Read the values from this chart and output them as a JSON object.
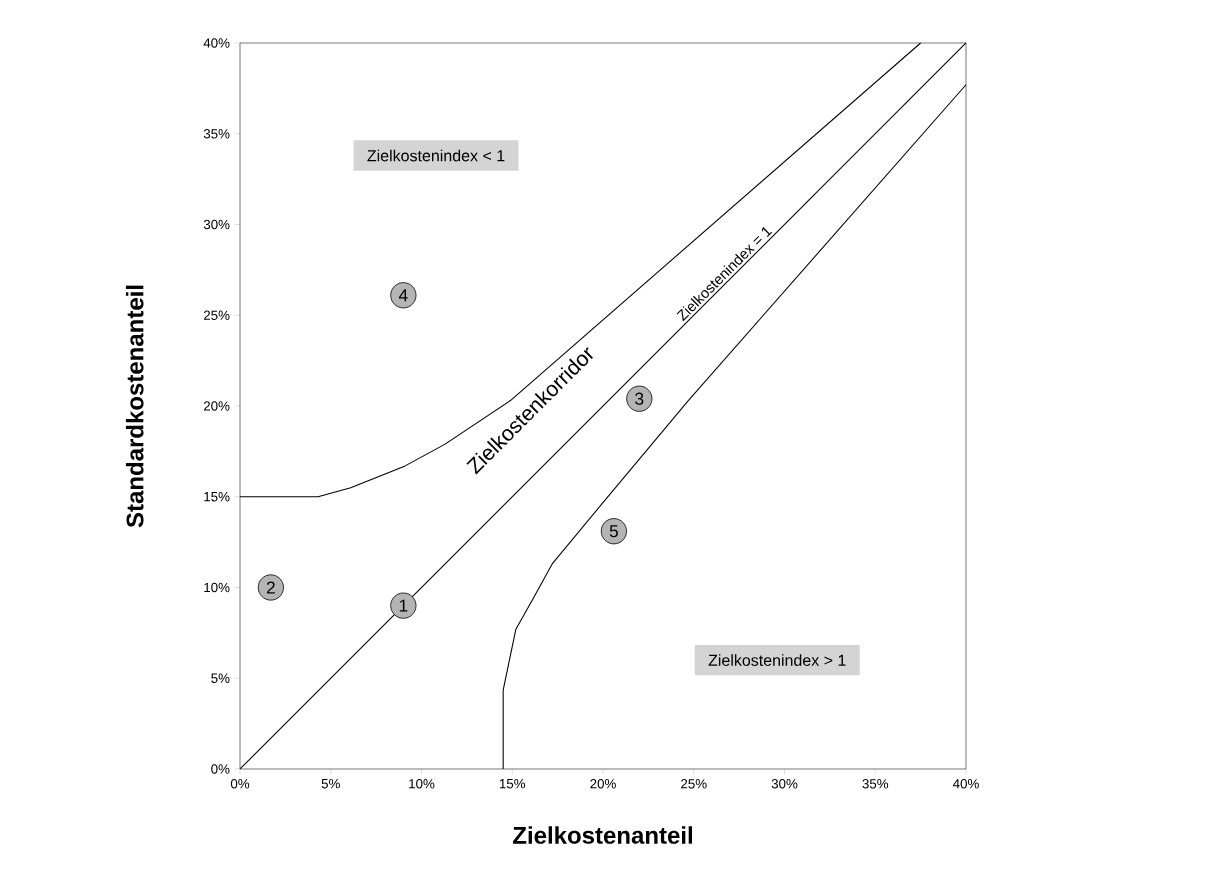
{
  "chart_data": {
    "type": "line",
    "xlabel": "Zielkostenanteil",
    "ylabel": "Standardkostenanteil",
    "xlim": [
      0,
      40
    ],
    "ylim": [
      0,
      40
    ],
    "xticks": [
      {
        "value": 0,
        "label": "0%"
      },
      {
        "value": 5,
        "label": "5%"
      },
      {
        "value": 10,
        "label": "10%"
      },
      {
        "value": 15,
        "label": "15%"
      },
      {
        "value": 20,
        "label": "20%"
      },
      {
        "value": 25,
        "label": "25%"
      },
      {
        "value": 30,
        "label": "30%"
      },
      {
        "value": 35,
        "label": "35%"
      },
      {
        "value": 40,
        "label": "40%"
      }
    ],
    "yticks": [
      {
        "value": 0,
        "label": "0%"
      },
      {
        "value": 5,
        "label": "5%"
      },
      {
        "value": 10,
        "label": "10%"
      },
      {
        "value": 15,
        "label": "15%"
      },
      {
        "value": 20,
        "label": "20%"
      },
      {
        "value": 25,
        "label": "25%"
      },
      {
        "value": 30,
        "label": "30%"
      },
      {
        "value": 35,
        "label": "35%"
      },
      {
        "value": 40,
        "label": "40%"
      }
    ],
    "series": [
      {
        "color": "#000000",
        "marker": "none",
        "x": [
          0,
          4.3,
          6.1,
          9.1,
          11.3,
          14.9,
          37.5
        ],
        "values": [
          15,
          15,
          15.5,
          16.7,
          17.9,
          20.3,
          40
        ]
      },
      {
        "color": "#000000",
        "marker": "none",
        "x": [
          0,
          40
        ],
        "values": [
          0,
          40
        ]
      },
      {
        "color": "#000000",
        "marker": "none",
        "x": [
          14.5,
          14.5,
          15.2,
          16.1,
          17.2,
          20.1,
          24.7,
          40
        ],
        "values": [
          0,
          4.35,
          7.7,
          9.3,
          11.3,
          14.8,
          20.3,
          37.7
        ]
      },
      {
        "type": "scatter",
        "color": "#b4b4b4",
        "x": [
          9,
          1.7,
          22,
          9,
          20.6
        ],
        "values": [
          9,
          10,
          20.4,
          26.1,
          13.1
        ]
      }
    ],
    "annotations": [
      {
        "text": "1",
        "x": 9,
        "y": 9
      },
      {
        "text": "2",
        "x": 1.7,
        "y": 10
      },
      {
        "text": "3",
        "x": 22,
        "y": 20.4
      },
      {
        "text": "4",
        "x": 9,
        "y": 26.1
      },
      {
        "text": "5",
        "x": 20.6,
        "y": 13.1
      },
      "Zielkostenindex < 1",
      "Zielkostenindex > 1",
      {
        "text": "Zielkostenindex = 1",
        "x": 27,
        "y": 27
      },
      "Zielkostenkorridor"
    ],
    "marker": "circle",
    "grid": false
  }
}
